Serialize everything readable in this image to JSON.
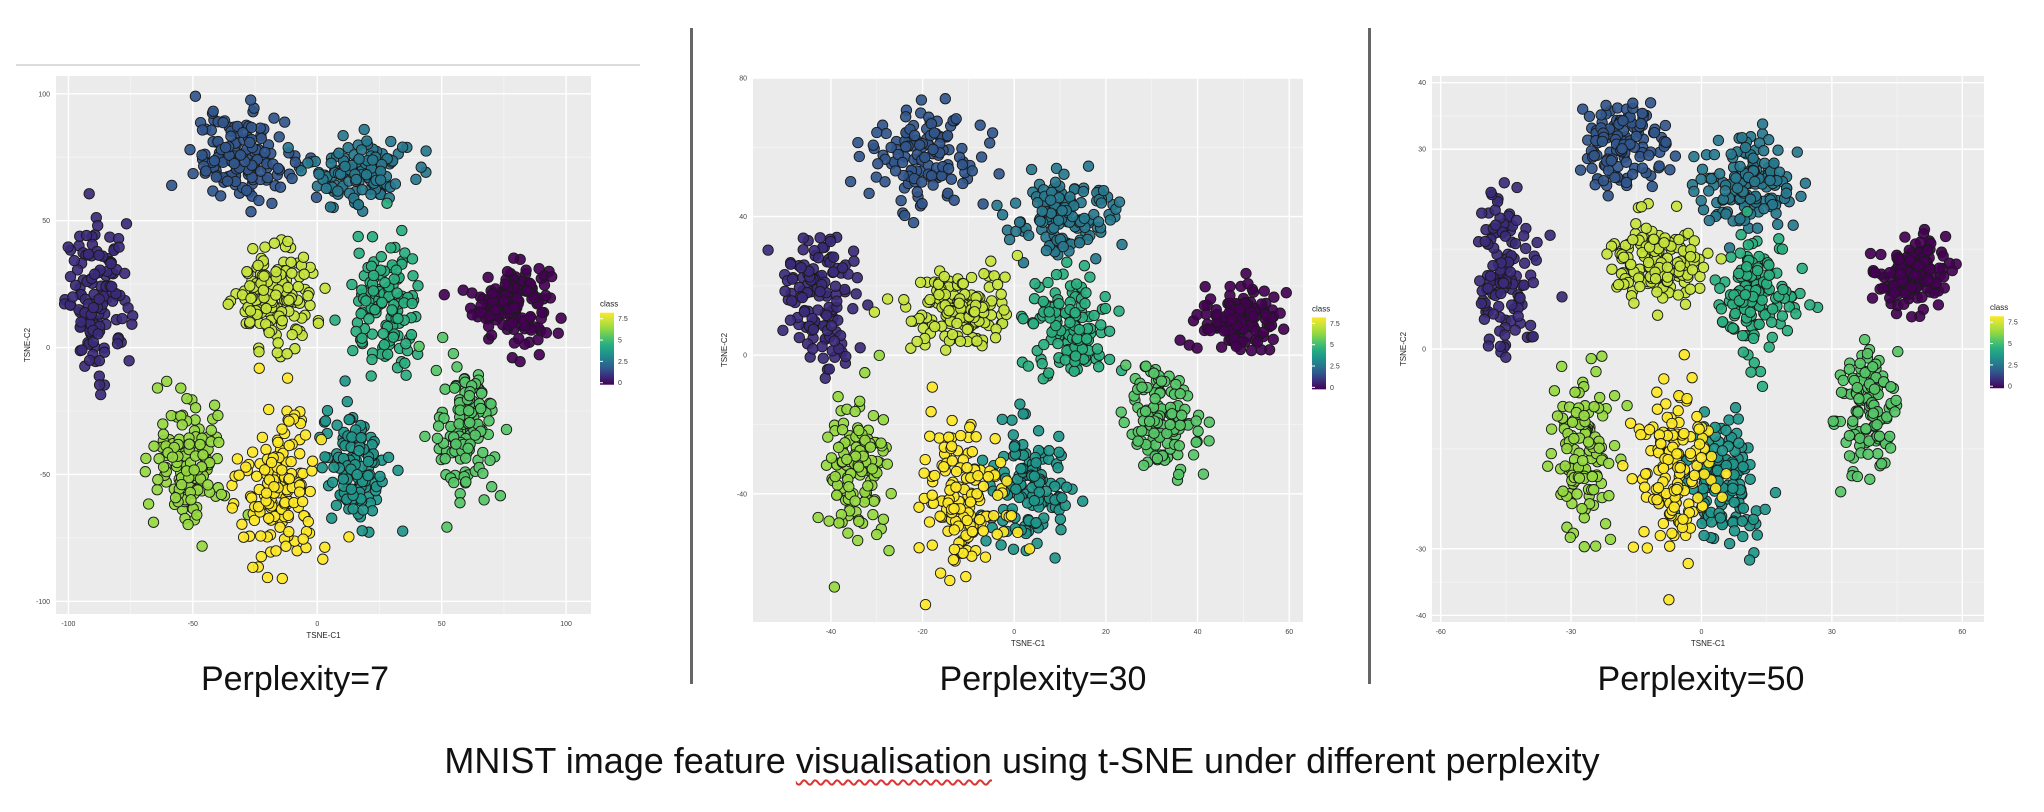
{
  "figure_caption": {
    "before": "MNIST image feature ",
    "misspelled_word": "visualisation",
    "after": " using t-SNE under different perplexity"
  },
  "palette": {
    "class_colors": [
      "#440154",
      "#3b2a7a",
      "#31568c",
      "#27788e",
      "#1f968b",
      "#29af7f",
      "#55c667",
      "#95d840",
      "#c5e43c",
      "#fde725"
    ],
    "panel_bg": "#ebebeb",
    "grid": "#ffffff",
    "divider": "#666666"
  },
  "chart_data": [
    {
      "type": "scatter",
      "caption": "Perplexity=7",
      "xlabel": "TSNE-C1",
      "ylabel": "TSNE-C2",
      "xlim": [
        -105,
        110
      ],
      "ylim": [
        -105,
        107
      ],
      "xticks": [
        -100,
        -50,
        0,
        50,
        100
      ],
      "yticks": [
        -100,
        -50,
        0,
        50,
        100
      ],
      "legend": {
        "title": "class",
        "labels": [
          "7.5",
          "5",
          "2.5",
          "0"
        ],
        "placement": "right"
      },
      "clusters": [
        {
          "digit": 0,
          "center": [
            78,
            18
          ],
          "spread": [
            14,
            14
          ],
          "n": 150
        },
        {
          "digit": 1,
          "center": [
            -88,
            18
          ],
          "spread": [
            12,
            26
          ],
          "n": 130
        },
        {
          "digit": 2,
          "center": [
            -30,
            75
          ],
          "spread": [
            18,
            16
          ],
          "n": 140
        },
        {
          "digit": 3,
          "center": [
            17,
            70
          ],
          "spread": [
            18,
            12
          ],
          "n": 140
        },
        {
          "digit": 4,
          "center": [
            15,
            -47
          ],
          "spread": [
            12,
            22
          ],
          "n": 130
        },
        {
          "digit": 5,
          "center": [
            28,
            15
          ],
          "spread": [
            12,
            24
          ],
          "n": 130
        },
        {
          "digit": 6,
          "center": [
            60,
            -33
          ],
          "spread": [
            11,
            23
          ],
          "n": 130
        },
        {
          "digit": 7,
          "center": [
            -52,
            -45
          ],
          "spread": [
            13,
            22
          ],
          "n": 140
        },
        {
          "digit": 8,
          "center": [
            -17,
            20
          ],
          "spread": [
            15,
            18
          ],
          "n": 150
        },
        {
          "digit": 9,
          "center": [
            -15,
            -55
          ],
          "spread": [
            14,
            26
          ],
          "n": 150
        }
      ]
    },
    {
      "type": "scatter",
      "caption": "Perplexity=30",
      "xlabel": "TSNE-C1",
      "ylabel": "TSNE-C2",
      "xlim": [
        -57,
        63
      ],
      "ylim": [
        -77,
        80
      ],
      "xticks": [
        -40,
        -20,
        0,
        20,
        40,
        60
      ],
      "yticks": [
        -40,
        0,
        40,
        80
      ],
      "legend": {
        "title": "class",
        "labels": [
          "7.5",
          "5",
          "2.5",
          "0"
        ],
        "placement": "right"
      },
      "clusters": [
        {
          "digit": 0,
          "center": [
            49,
            10
          ],
          "spread": [
            8,
            8
          ],
          "n": 150
        },
        {
          "digit": 1,
          "center": [
            -42,
            17
          ],
          "spread": [
            7,
            18
          ],
          "n": 130
        },
        {
          "digit": 2,
          "center": [
            -20,
            57
          ],
          "spread": [
            10,
            12
          ],
          "n": 130
        },
        {
          "digit": 3,
          "center": [
            10,
            40
          ],
          "spread": [
            10,
            10
          ],
          "n": 150
        },
        {
          "digit": 4,
          "center": [
            3,
            -38
          ],
          "spread": [
            9,
            16
          ],
          "n": 130
        },
        {
          "digit": 5,
          "center": [
            12,
            8
          ],
          "spread": [
            8,
            14
          ],
          "n": 130
        },
        {
          "digit": 6,
          "center": [
            32,
            -18
          ],
          "spread": [
            8,
            14
          ],
          "n": 130
        },
        {
          "digit": 7,
          "center": [
            -34,
            -32
          ],
          "spread": [
            6,
            18
          ],
          "n": 130
        },
        {
          "digit": 8,
          "center": [
            -12,
            13
          ],
          "spread": [
            10,
            10
          ],
          "n": 150
        },
        {
          "digit": 9,
          "center": [
            -11,
            -41
          ],
          "spread": [
            8,
            20
          ],
          "n": 150
        }
      ]
    },
    {
      "type": "scatter",
      "caption": "Perplexity=50",
      "xlabel": "TSNE-C1",
      "ylabel": "TSNE-C2",
      "xlim": [
        -62,
        65
      ],
      "ylim": [
        -41,
        41
      ],
      "xticks": [
        -60,
        -30,
        0,
        30,
        60
      ],
      "yticks": [
        -40,
        -30,
        0,
        30,
        40
      ],
      "legend": {
        "title": "class",
        "labels": [
          "7.5",
          "5",
          "2.5",
          "0"
        ],
        "placement": "right"
      },
      "clusters": [
        {
          "digit": 0,
          "center": [
            48,
            11
          ],
          "spread": [
            7,
            5
          ],
          "n": 150
        },
        {
          "digit": 1,
          "center": [
            -45,
            11
          ],
          "spread": [
            6,
            11
          ],
          "n": 130
        },
        {
          "digit": 2,
          "center": [
            -18,
            31
          ],
          "spread": [
            8,
            6
          ],
          "n": 130
        },
        {
          "digit": 3,
          "center": [
            10,
            25
          ],
          "spread": [
            9,
            6
          ],
          "n": 150
        },
        {
          "digit": 4,
          "center": [
            5,
            -20
          ],
          "spread": [
            8,
            9
          ],
          "n": 130
        },
        {
          "digit": 5,
          "center": [
            13,
            7
          ],
          "spread": [
            8,
            8
          ],
          "n": 130
        },
        {
          "digit": 6,
          "center": [
            38,
            -9
          ],
          "spread": [
            6,
            9
          ],
          "n": 130
        },
        {
          "digit": 7,
          "center": [
            -27,
            -16
          ],
          "spread": [
            6,
            11
          ],
          "n": 130
        },
        {
          "digit": 8,
          "center": [
            -10,
            13
          ],
          "spread": [
            10,
            6
          ],
          "n": 150
        },
        {
          "digit": 9,
          "center": [
            -6,
            -19
          ],
          "spread": [
            7,
            11
          ],
          "n": 150
        }
      ]
    }
  ]
}
